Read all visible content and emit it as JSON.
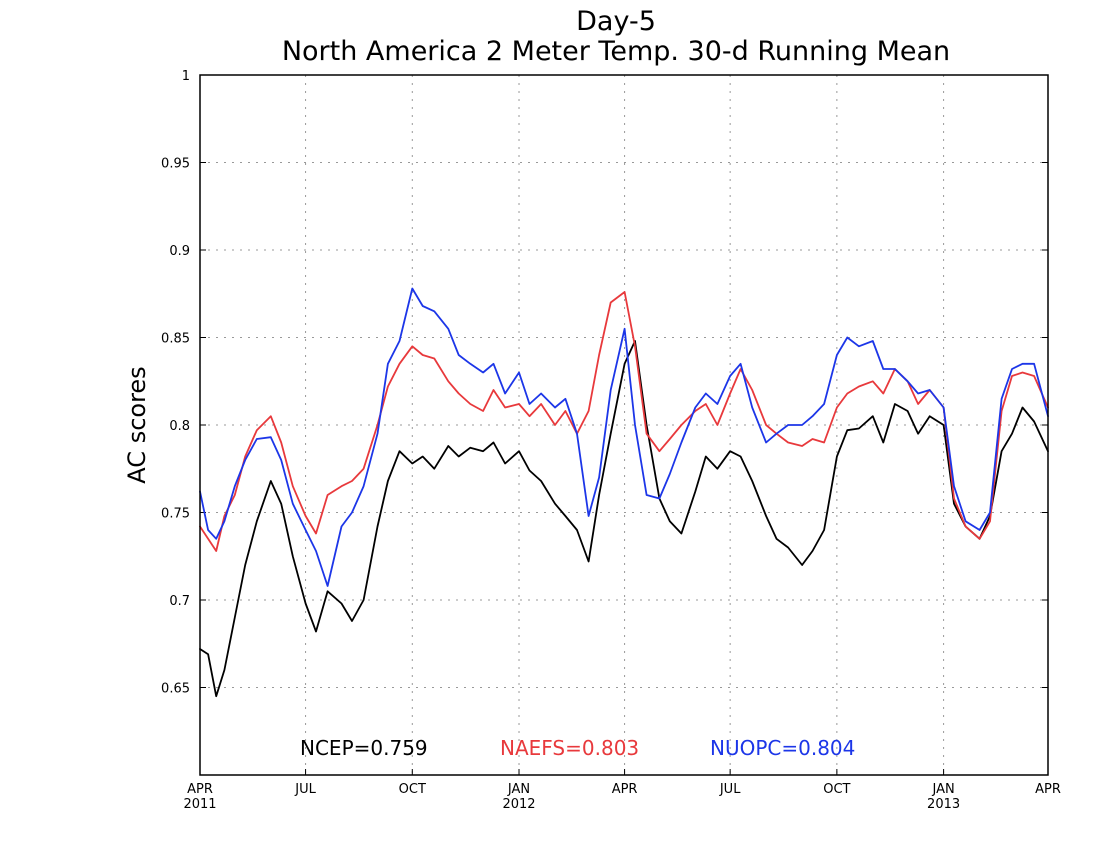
{
  "chart_data": {
    "type": "line",
    "title": "Day-5",
    "subtitle": "North America 2 Meter Temp. 30-d Running Mean",
    "xlabel": "",
    "ylabel": "AC scores",
    "ylim": [
      0.6,
      1.0
    ],
    "xlim": [
      "2011-04-01",
      "2013-04-01"
    ],
    "grid": true,
    "y_ticks": [
      "0.65",
      "0.7",
      "0.75",
      "0.8",
      "0.85",
      "0.9",
      "0.95",
      "1"
    ],
    "x_ticks": [
      {
        "label": "APR",
        "year": "2011",
        "date": "2011-04-01"
      },
      {
        "label": "JUL",
        "year": "",
        "date": "2011-07-01"
      },
      {
        "label": "OCT",
        "year": "",
        "date": "2011-10-01"
      },
      {
        "label": "JAN",
        "year": "2012",
        "date": "2012-01-01"
      },
      {
        "label": "APR",
        "year": "",
        "date": "2012-04-01"
      },
      {
        "label": "JUL",
        "year": "",
        "date": "2012-07-01"
      },
      {
        "label": "OCT",
        "year": "",
        "date": "2012-10-01"
      },
      {
        "label": "JAN",
        "year": "2013",
        "date": "2013-01-01"
      },
      {
        "label": "APR",
        "year": "",
        "date": "2013-04-01"
      }
    ],
    "legend_placement": "bottom",
    "legend": [
      {
        "text": "NCEP=0.759",
        "color": "#000000"
      },
      {
        "text": "NAEFS=0.803",
        "color": "#e8393c"
      },
      {
        "text": "NUOPC=0.804",
        "color": "#1c36e8"
      }
    ],
    "series": [
      {
        "name": "NCEP",
        "color": "#000000",
        "x": [
          "2011-04-01",
          "2011-04-08",
          "2011-04-15",
          "2011-04-22",
          "2011-05-01",
          "2011-05-10",
          "2011-05-20",
          "2011-06-01",
          "2011-06-10",
          "2011-06-20",
          "2011-07-01",
          "2011-07-10",
          "2011-07-20",
          "2011-08-01",
          "2011-08-10",
          "2011-08-20",
          "2011-09-01",
          "2011-09-10",
          "2011-09-20",
          "2011-10-01",
          "2011-10-10",
          "2011-10-20",
          "2011-11-01",
          "2011-11-10",
          "2011-11-20",
          "2011-12-01",
          "2011-12-10",
          "2011-12-20",
          "2012-01-01",
          "2012-01-10",
          "2012-01-20",
          "2012-02-01",
          "2012-02-10",
          "2012-02-20",
          "2012-03-01",
          "2012-03-10",
          "2012-03-20",
          "2012-04-01",
          "2012-04-10",
          "2012-04-20",
          "2012-05-01",
          "2012-05-10",
          "2012-05-20",
          "2012-06-01",
          "2012-06-10",
          "2012-06-20",
          "2012-07-01",
          "2012-07-10",
          "2012-07-20",
          "2012-08-01",
          "2012-08-10",
          "2012-08-20",
          "2012-09-01",
          "2012-09-10",
          "2012-09-20",
          "2012-10-01",
          "2012-10-10",
          "2012-10-20",
          "2012-11-01",
          "2012-11-10",
          "2012-11-20",
          "2012-12-01",
          "2012-12-10",
          "2012-12-20",
          "2013-01-01",
          "2013-01-10",
          "2013-01-20",
          "2013-02-01",
          "2013-02-10",
          "2013-02-20",
          "2013-03-01",
          "2013-03-10",
          "2013-03-20",
          "2013-04-01"
        ],
        "values": [
          0.672,
          0.669,
          0.645,
          0.66,
          0.69,
          0.72,
          0.745,
          0.768,
          0.755,
          0.725,
          0.698,
          0.682,
          0.705,
          0.698,
          0.688,
          0.7,
          0.742,
          0.768,
          0.785,
          0.778,
          0.782,
          0.775,
          0.788,
          0.782,
          0.787,
          0.785,
          0.79,
          0.778,
          0.785,
          0.774,
          0.768,
          0.755,
          0.748,
          0.74,
          0.722,
          0.76,
          0.795,
          0.835,
          0.848,
          0.8,
          0.758,
          0.745,
          0.738,
          0.762,
          0.782,
          0.775,
          0.785,
          0.782,
          0.768,
          0.748,
          0.735,
          0.73,
          0.72,
          0.728,
          0.74,
          0.782,
          0.797,
          0.798,
          0.805,
          0.79,
          0.812,
          0.808,
          0.795,
          0.805,
          0.8,
          0.755,
          0.742,
          0.735,
          0.748,
          0.785,
          0.795,
          0.81,
          0.802,
          0.785
        ]
      },
      {
        "name": "NAEFS",
        "color": "#e8393c",
        "x": [
          "2011-04-01",
          "2011-04-08",
          "2011-04-15",
          "2011-04-22",
          "2011-05-01",
          "2011-05-10",
          "2011-05-20",
          "2011-06-01",
          "2011-06-10",
          "2011-06-20",
          "2011-07-01",
          "2011-07-10",
          "2011-07-20",
          "2011-08-01",
          "2011-08-10",
          "2011-08-20",
          "2011-09-01",
          "2011-09-10",
          "2011-09-20",
          "2011-10-01",
          "2011-10-10",
          "2011-10-20",
          "2011-11-01",
          "2011-11-10",
          "2011-11-20",
          "2011-12-01",
          "2011-12-10",
          "2011-12-20",
          "2012-01-01",
          "2012-01-10",
          "2012-01-20",
          "2012-02-01",
          "2012-02-10",
          "2012-02-20",
          "2012-03-01",
          "2012-03-10",
          "2012-03-20",
          "2012-04-01",
          "2012-04-10",
          "2012-04-20",
          "2012-05-01",
          "2012-05-10",
          "2012-05-20",
          "2012-06-01",
          "2012-06-10",
          "2012-06-20",
          "2012-07-01",
          "2012-07-10",
          "2012-07-20",
          "2012-08-01",
          "2012-08-10",
          "2012-08-20",
          "2012-09-01",
          "2012-09-10",
          "2012-09-20",
          "2012-10-01",
          "2012-10-10",
          "2012-10-20",
          "2012-11-01",
          "2012-11-10",
          "2012-11-20",
          "2012-12-01",
          "2012-12-10",
          "2012-12-20",
          "2013-01-01",
          "2013-01-10",
          "2013-01-20",
          "2013-02-01",
          "2013-02-10",
          "2013-02-20",
          "2013-03-01",
          "2013-03-10",
          "2013-03-20",
          "2013-04-01"
        ],
        "values": [
          0.742,
          0.735,
          0.728,
          0.748,
          0.76,
          0.782,
          0.797,
          0.805,
          0.79,
          0.765,
          0.748,
          0.738,
          0.76,
          0.765,
          0.768,
          0.775,
          0.8,
          0.822,
          0.835,
          0.845,
          0.84,
          0.838,
          0.825,
          0.818,
          0.812,
          0.808,
          0.82,
          0.81,
          0.812,
          0.805,
          0.812,
          0.8,
          0.808,
          0.795,
          0.808,
          0.84,
          0.87,
          0.876,
          0.845,
          0.795,
          0.785,
          0.792,
          0.8,
          0.808,
          0.812,
          0.8,
          0.818,
          0.832,
          0.82,
          0.8,
          0.795,
          0.79,
          0.788,
          0.792,
          0.79,
          0.81,
          0.818,
          0.822,
          0.825,
          0.818,
          0.832,
          0.825,
          0.812,
          0.82,
          0.81,
          0.758,
          0.742,
          0.735,
          0.745,
          0.808,
          0.828,
          0.83,
          0.828,
          0.81
        ]
      },
      {
        "name": "NUOPC",
        "color": "#1c36e8",
        "x": [
          "2011-04-01",
          "2011-04-08",
          "2011-04-15",
          "2011-04-22",
          "2011-05-01",
          "2011-05-10",
          "2011-05-20",
          "2011-06-01",
          "2011-06-10",
          "2011-06-20",
          "2011-07-01",
          "2011-07-10",
          "2011-07-20",
          "2011-08-01",
          "2011-08-10",
          "2011-08-20",
          "2011-09-01",
          "2011-09-10",
          "2011-09-20",
          "2011-10-01",
          "2011-10-10",
          "2011-10-20",
          "2011-11-01",
          "2011-11-10",
          "2011-11-20",
          "2011-12-01",
          "2011-12-10",
          "2011-12-20",
          "2012-01-01",
          "2012-01-10",
          "2012-01-20",
          "2012-02-01",
          "2012-02-10",
          "2012-02-20",
          "2012-03-01",
          "2012-03-10",
          "2012-03-20",
          "2012-04-01",
          "2012-04-10",
          "2012-04-20",
          "2012-05-01",
          "2012-05-10",
          "2012-05-20",
          "2012-06-01",
          "2012-06-10",
          "2012-06-20",
          "2012-07-01",
          "2012-07-10",
          "2012-07-20",
          "2012-08-01",
          "2012-08-10",
          "2012-08-20",
          "2012-09-01",
          "2012-09-10",
          "2012-09-20",
          "2012-10-01",
          "2012-10-10",
          "2012-10-20",
          "2012-11-01",
          "2012-11-10",
          "2012-11-20",
          "2012-12-01",
          "2012-12-10",
          "2012-12-20",
          "2013-01-01",
          "2013-01-10",
          "2013-01-20",
          "2013-02-01",
          "2013-02-10",
          "2013-02-20",
          "2013-03-01",
          "2013-03-10",
          "2013-03-20",
          "2013-04-01"
        ],
        "values": [
          0.762,
          0.74,
          0.735,
          0.745,
          0.765,
          0.78,
          0.792,
          0.793,
          0.78,
          0.755,
          0.74,
          0.728,
          0.708,
          0.742,
          0.75,
          0.765,
          0.795,
          0.835,
          0.848,
          0.878,
          0.868,
          0.865,
          0.855,
          0.84,
          0.835,
          0.83,
          0.835,
          0.818,
          0.83,
          0.812,
          0.818,
          0.81,
          0.815,
          0.795,
          0.748,
          0.77,
          0.82,
          0.855,
          0.8,
          0.76,
          0.758,
          0.772,
          0.79,
          0.81,
          0.818,
          0.812,
          0.828,
          0.835,
          0.81,
          0.79,
          0.795,
          0.8,
          0.8,
          0.805,
          0.812,
          0.84,
          0.85,
          0.845,
          0.848,
          0.832,
          0.832,
          0.825,
          0.818,
          0.82,
          0.81,
          0.765,
          0.745,
          0.74,
          0.75,
          0.815,
          0.832,
          0.835,
          0.835,
          0.805
        ]
      }
    ]
  }
}
